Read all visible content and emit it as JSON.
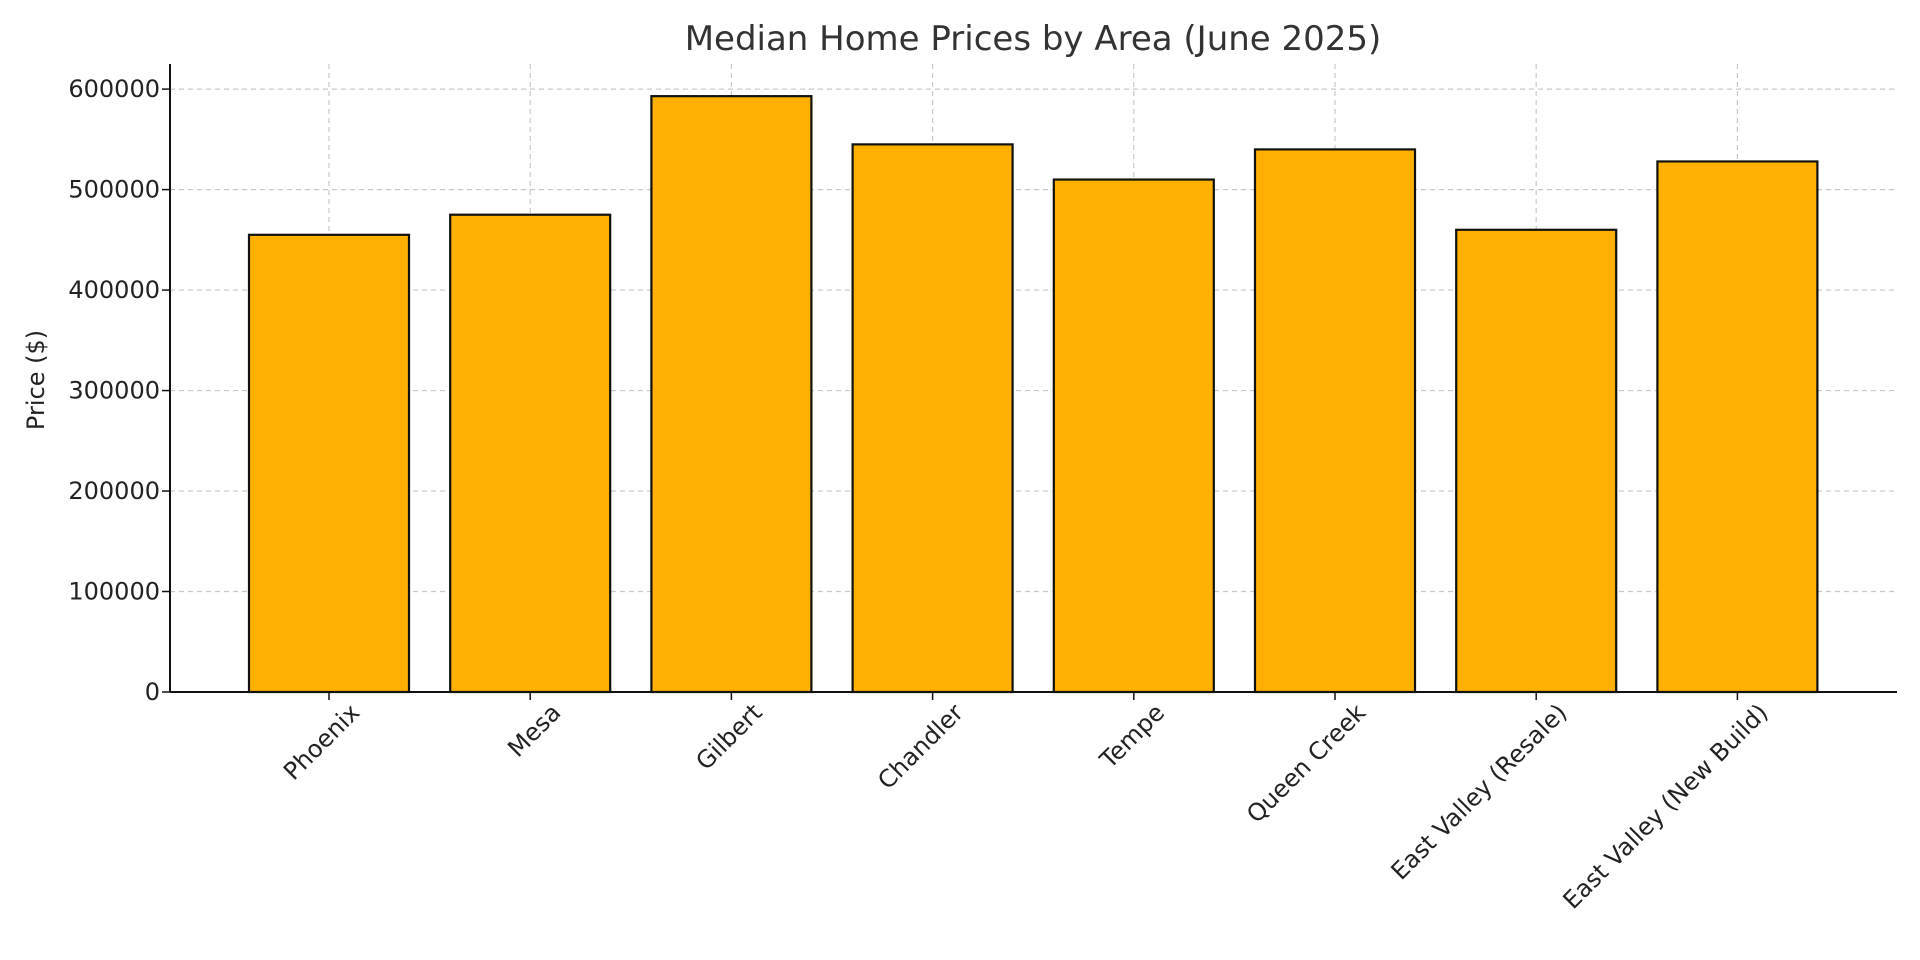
{
  "colors": {
    "bar": "#FFB000",
    "edge": "#111111",
    "grid": "#c8c8c8"
  },
  "chart_data": {
    "type": "bar",
    "title": "Median Home Prices by Area (June 2025)",
    "xlabel": "",
    "ylabel": "Price ($)",
    "categories": [
      "Phoenix",
      "Mesa",
      "Gilbert",
      "Chandler",
      "Tempe",
      "Queen Creek",
      "East Valley (Resale)",
      "East Valley (New Build)"
    ],
    "values": [
      455000,
      475000,
      593000,
      545000,
      510000,
      540000,
      460000,
      528000
    ],
    "ylim": [
      0,
      625000
    ],
    "yticks": [
      0,
      100000,
      200000,
      300000,
      400000,
      500000,
      600000
    ],
    "ytick_labels": [
      "0",
      "100000",
      "200000",
      "300000",
      "400000",
      "500000",
      "600000"
    ],
    "grid": true,
    "legend": "none"
  }
}
